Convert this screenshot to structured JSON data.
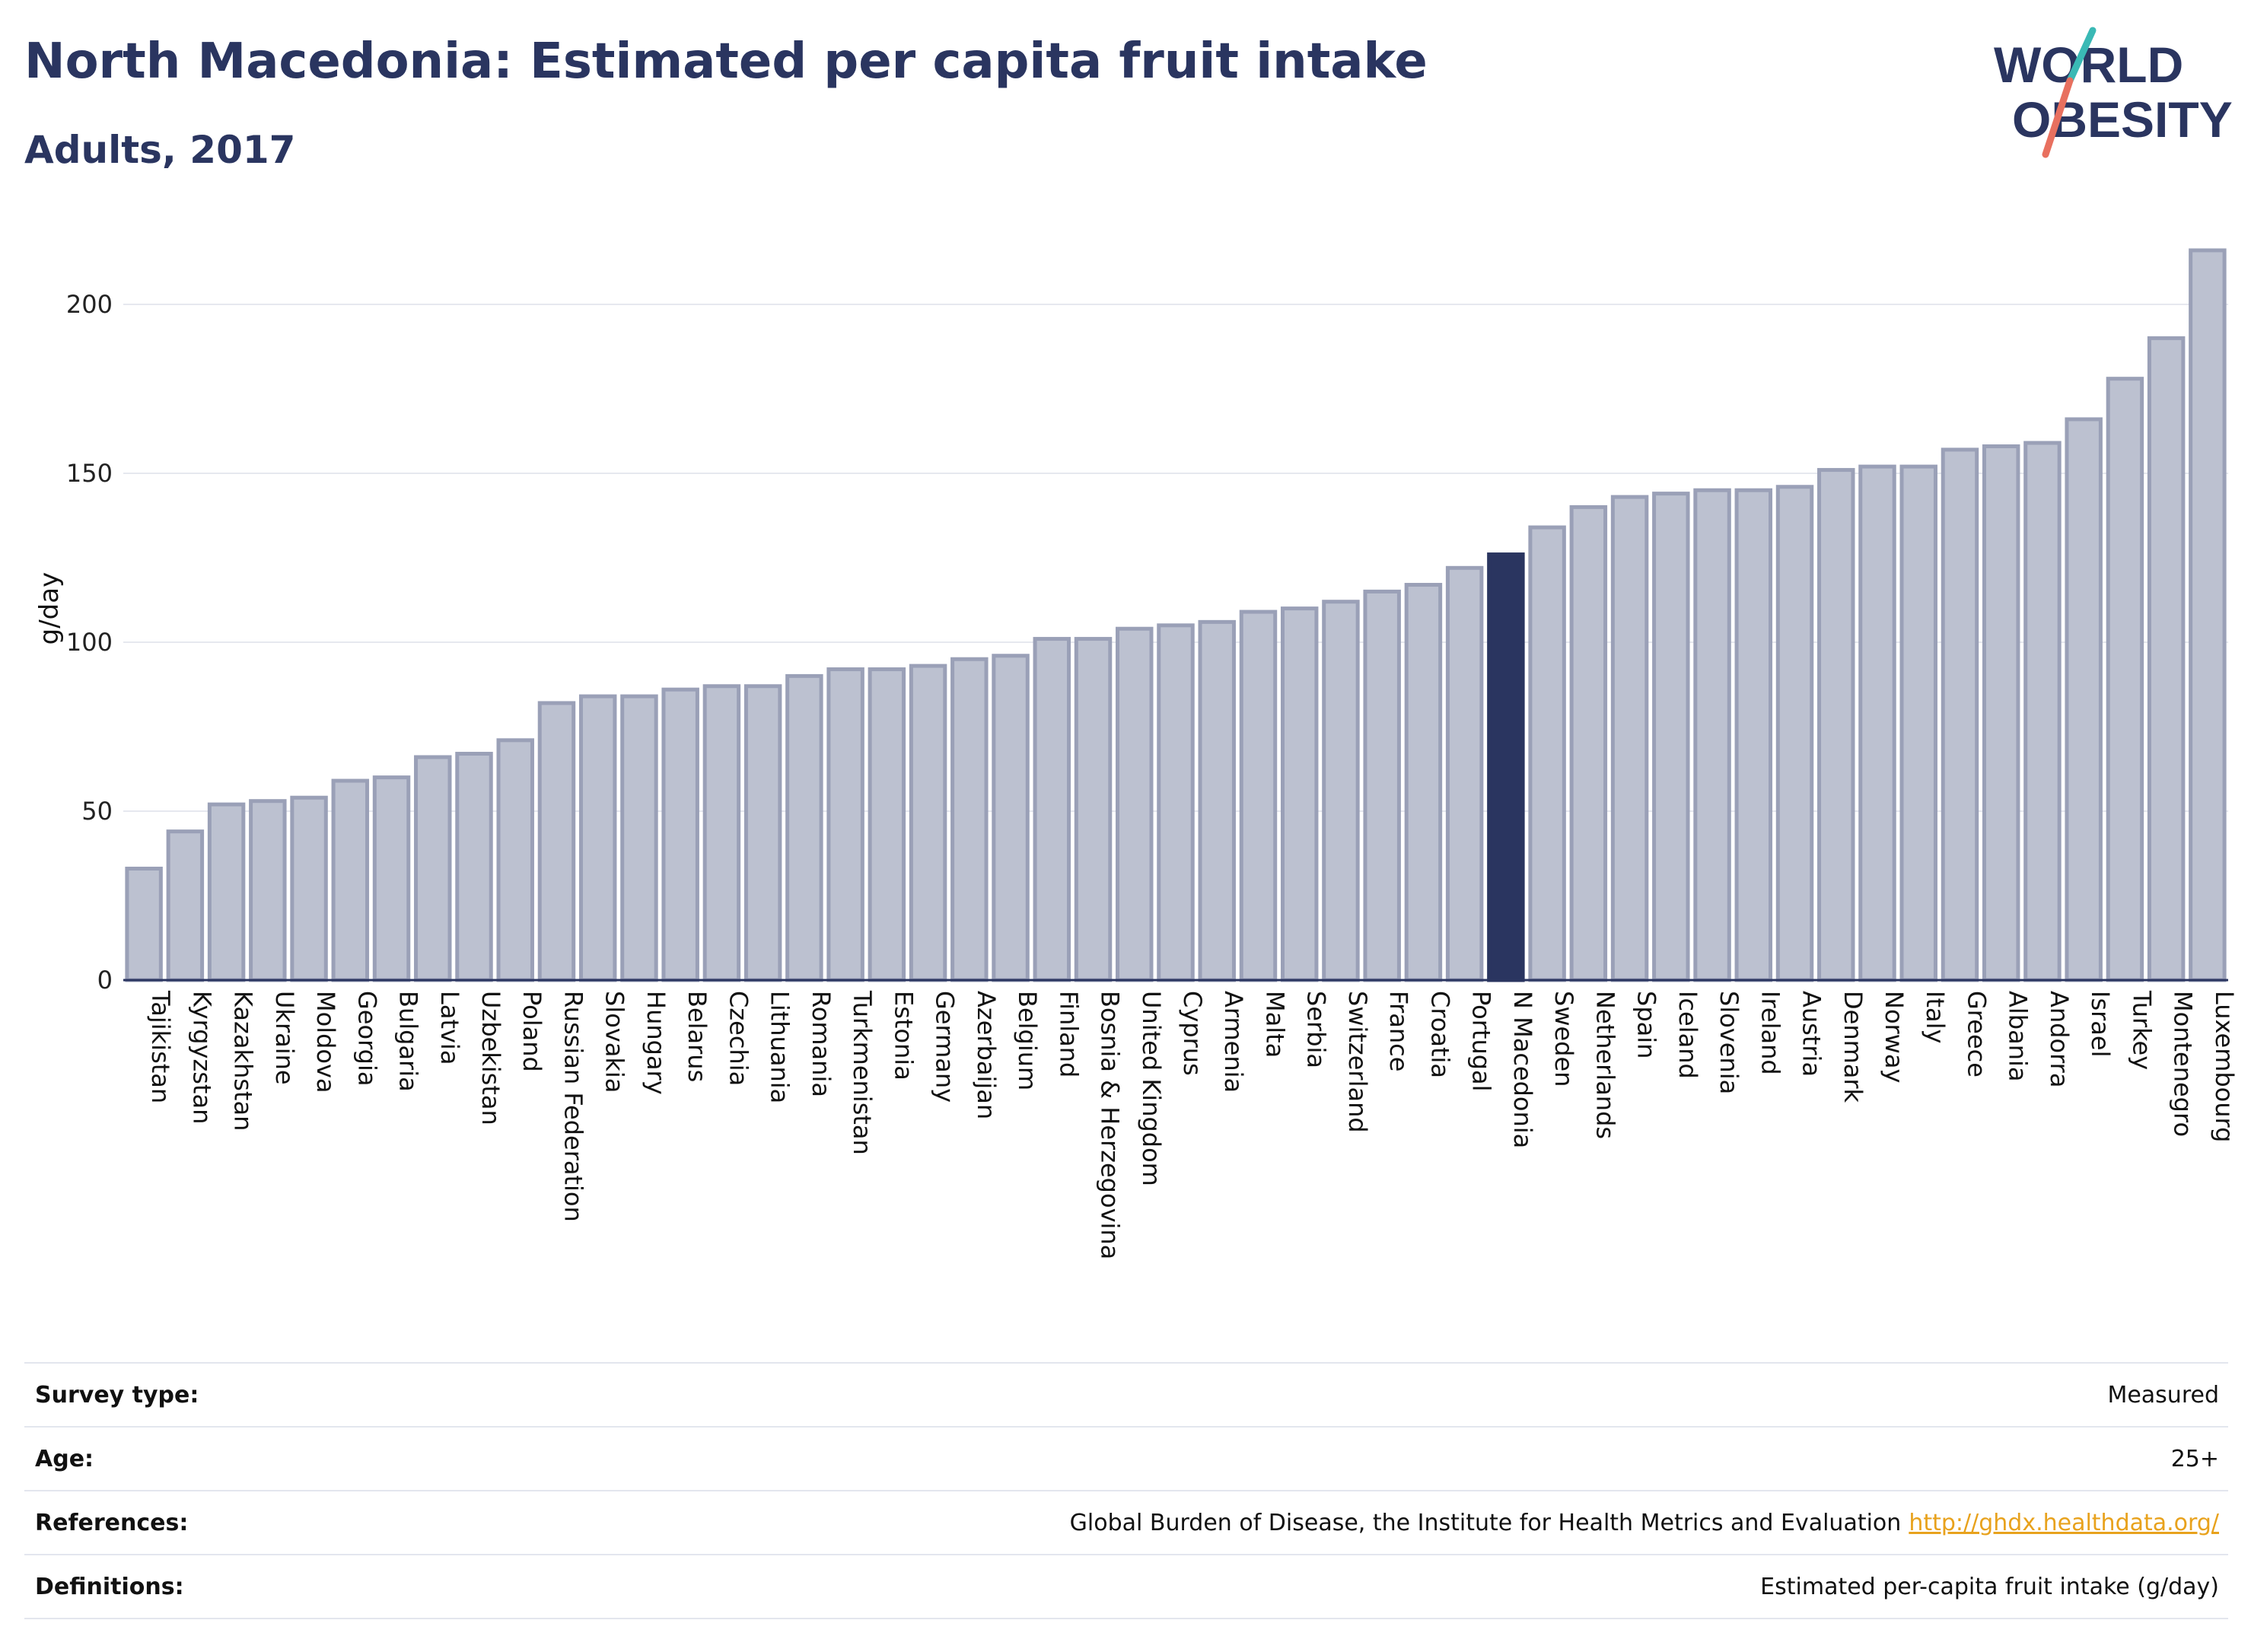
{
  "header": {
    "title": "North Macedonia: Estimated per capita fruit intake",
    "subtitle": "Adults, 2017"
  },
  "logo": {
    "line1": "WORLD",
    "line2": "OBESITY",
    "accent_teal": "#3ab9b5",
    "accent_red": "#e8705f"
  },
  "colors": {
    "bar": "#bcc1d0",
    "bar_edge": "#9aa0b7",
    "highlight": "#2a3560",
    "text": "#2a3560"
  },
  "chart_data": {
    "type": "bar",
    "title": "North Macedonia: Estimated per capita fruit intake",
    "subtitle": "Adults, 2017",
    "xlabel": "",
    "ylabel": "g/day",
    "ylim": [
      0,
      220
    ],
    "yticks": [
      0,
      50,
      100,
      150,
      200
    ],
    "grid": true,
    "highlight_category": "N Macedonia",
    "categories": [
      "Tajikistan",
      "Kyrgyzstan",
      "Kazakhstan",
      "Ukraine",
      "Moldova",
      "Georgia",
      "Bulgaria",
      "Latvia",
      "Uzbekistan",
      "Poland",
      "Russian Federation",
      "Slovakia",
      "Hungary",
      "Belarus",
      "Czechia",
      "Lithuania",
      "Romania",
      "Turkmenistan",
      "Estonia",
      "Germany",
      "Azerbaijan",
      "Belgium",
      "Finland",
      "Bosnia & Herzegovina",
      "United Kingdom",
      "Cyprus",
      "Armenia",
      "Malta",
      "Serbia",
      "Switzerland",
      "France",
      "Croatia",
      "Portugal",
      "N Macedonia",
      "Sweden",
      "Netherlands",
      "Spain",
      "Iceland",
      "Slovenia",
      "Ireland",
      "Austria",
      "Denmark",
      "Norway",
      "Italy",
      "Greece",
      "Albania",
      "Andorra",
      "Israel",
      "Turkey",
      "Montenegro",
      "Luxembourg"
    ],
    "values": [
      33,
      44,
      52,
      53,
      54,
      59,
      60,
      66,
      67,
      71,
      82,
      84,
      84,
      86,
      87,
      87,
      90,
      92,
      92,
      93,
      95,
      96,
      101,
      101,
      104,
      105,
      106,
      109,
      110,
      112,
      115,
      117,
      122,
      126,
      134,
      140,
      143,
      144,
      145,
      145,
      146,
      151,
      152,
      152,
      157,
      158,
      159,
      166,
      178,
      190,
      216
    ]
  },
  "meta": {
    "rows": [
      {
        "key": "Survey type:",
        "value": "Measured"
      },
      {
        "key": "Age:",
        "value": "25+"
      },
      {
        "key": "References:",
        "value": "Global Burden of Disease, the Institute for Health Metrics and Evaluation",
        "link": "http://ghdx.healthdata.org/"
      },
      {
        "key": "Definitions:",
        "value": "Estimated per-capita fruit intake (g/day)"
      }
    ]
  }
}
